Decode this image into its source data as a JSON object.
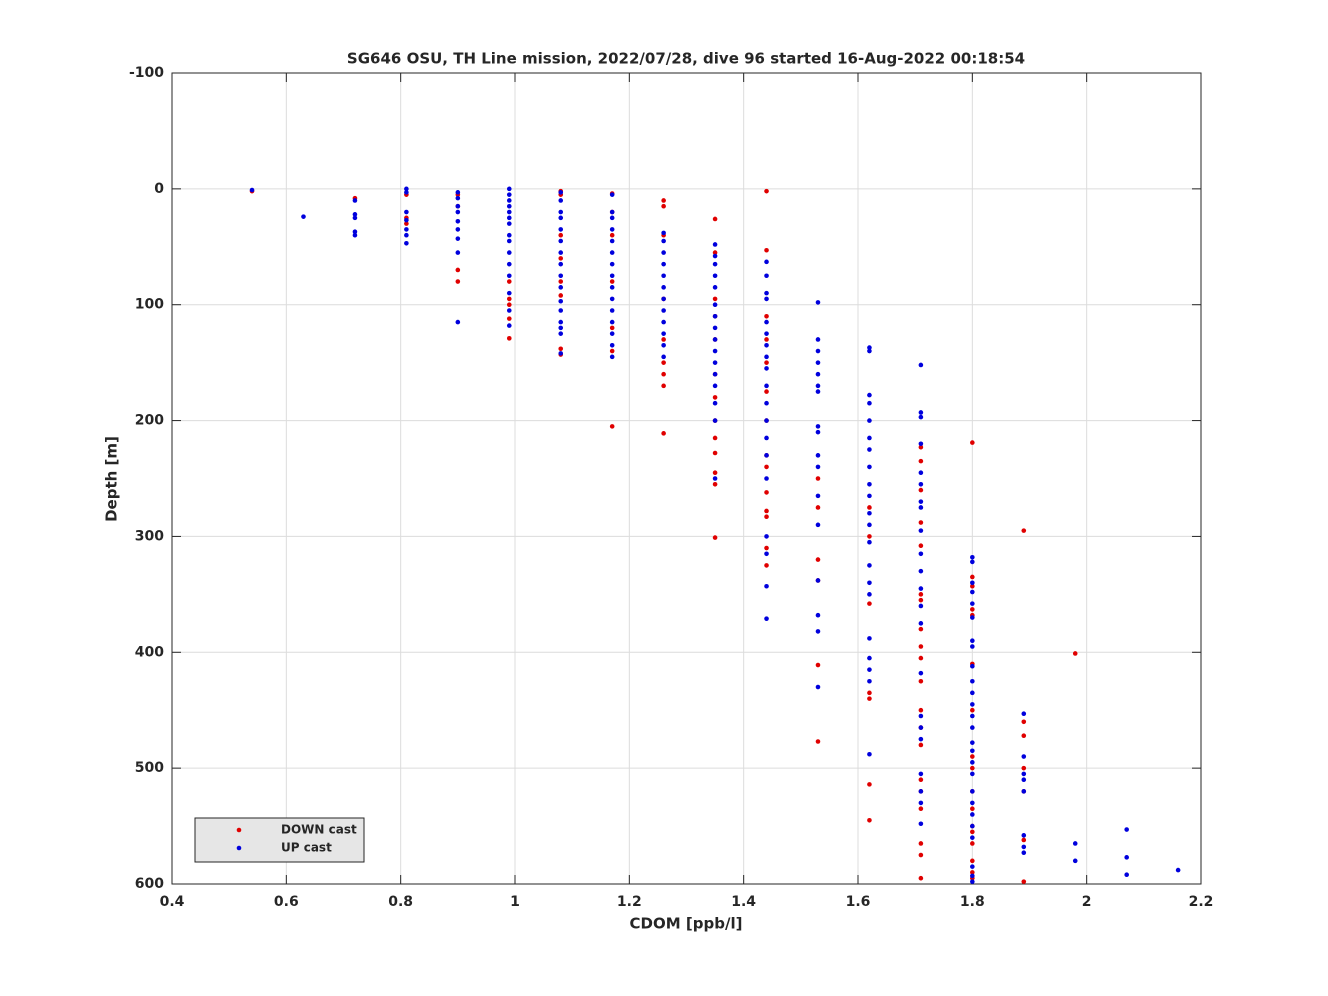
{
  "chart_data": {
    "type": "scatter",
    "title": "SG646 OSU, TH Line mission, 2022/07/28, dive 96 started 16-Aug-2022 00:18:54",
    "x_label": "CDOM [ppb/l]",
    "y_label": "Depth [m]",
    "xlim": [
      0.4,
      2.2
    ],
    "xticks": [
      0.4,
      0.6,
      0.8,
      1,
      1.2,
      1.4,
      1.6,
      1.8,
      2,
      2.2
    ],
    "ylim": [
      -100,
      600
    ],
    "yticks": [
      -100,
      0,
      100,
      200,
      300,
      400,
      500,
      600
    ],
    "y_reversed": true,
    "grid": true,
    "legend": "lower left",
    "series": [
      {
        "name": "DOWN cast",
        "color": "#e00000",
        "x": [
          0.54,
          0.72,
          0.81,
          0.81,
          0.81,
          0.9,
          0.9,
          0.9,
          0.9,
          0.99,
          0.99,
          0.99,
          0.99,
          0.99,
          1.08,
          1.08,
          1.08,
          1.08,
          1.08,
          1.08,
          1.08,
          1.08,
          1.17,
          1.17,
          1.17,
          1.17,
          1.17,
          1.17,
          1.17,
          1.26,
          1.26,
          1.26,
          1.26,
          1.26,
          1.26,
          1.26,
          1.26,
          1.26,
          1.35,
          1.35,
          1.35,
          1.35,
          1.35,
          1.35,
          1.35,
          1.35,
          1.35,
          1.35,
          1.35,
          1.35,
          1.35,
          1.44,
          1.44,
          1.44,
          1.44,
          1.44,
          1.44,
          1.44,
          1.44,
          1.44,
          1.44,
          1.44,
          1.44,
          1.44,
          1.44,
          1.53,
          1.53,
          1.53,
          1.53,
          1.53,
          1.53,
          1.62,
          1.62,
          1.62,
          1.62,
          1.62,
          1.62,
          1.62,
          1.71,
          1.71,
          1.71,
          1.71,
          1.71,
          1.71,
          1.71,
          1.71,
          1.71,
          1.71,
          1.71,
          1.71,
          1.71,
          1.71,
          1.71,
          1.71,
          1.71,
          1.71,
          1.71,
          1.71,
          1.8,
          1.8,
          1.8,
          1.8,
          1.8,
          1.8,
          1.8,
          1.8,
          1.8,
          1.8,
          1.8,
          1.8,
          1.8,
          1.8,
          1.8,
          1.8,
          1.8,
          1.89,
          1.89,
          1.89,
          1.89,
          1.89,
          1.89,
          1.89,
          1.98
        ],
        "y": [
          2,
          8,
          5,
          25,
          30,
          5,
          15,
          70,
          80,
          80,
          95,
          100,
          112,
          129,
          2,
          5,
          40,
          60,
          80,
          92,
          138,
          143,
          4,
          20,
          40,
          80,
          120,
          140,
          205,
          10,
          15,
          40,
          95,
          130,
          150,
          160,
          170,
          211,
          26,
          55,
          95,
          110,
          130,
          160,
          180,
          200,
          215,
          228,
          245,
          255,
          301,
          2,
          53,
          110,
          130,
          150,
          175,
          200,
          230,
          240,
          262,
          278,
          283,
          310,
          325,
          250,
          275,
          320,
          338,
          411,
          477,
          275,
          300,
          358,
          435,
          440,
          514,
          545,
          223,
          235,
          260,
          288,
          308,
          350,
          355,
          380,
          395,
          405,
          425,
          450,
          465,
          480,
          510,
          520,
          535,
          565,
          575,
          595,
          219,
          335,
          343,
          363,
          368,
          410,
          450,
          490,
          500,
          520,
          535,
          550,
          555,
          565,
          580,
          590,
          595,
          295,
          460,
          472,
          500,
          520,
          562,
          598,
          401
        ]
      },
      {
        "name": "UP cast",
        "color": "#0000dd",
        "x": [
          0.54,
          0.63,
          0.72,
          0.72,
          0.72,
          0.72,
          0.72,
          0.81,
          0.81,
          0.81,
          0.81,
          0.81,
          0.81,
          0.81,
          0.9,
          0.9,
          0.9,
          0.9,
          0.9,
          0.9,
          0.9,
          0.9,
          0.9,
          0.99,
          0.99,
          0.99,
          0.99,
          0.99,
          0.99,
          0.99,
          0.99,
          0.99,
          0.99,
          0.99,
          0.99,
          0.99,
          0.99,
          0.99,
          1.08,
          1.08,
          1.08,
          1.08,
          1.08,
          1.08,
          1.08,
          1.08,
          1.08,
          1.08,
          1.08,
          1.08,
          1.08,
          1.08,
          1.08,
          1.08,
          1.17,
          1.17,
          1.17,
          1.17,
          1.17,
          1.17,
          1.17,
          1.17,
          1.17,
          1.17,
          1.17,
          1.17,
          1.17,
          1.17,
          1.17,
          1.26,
          1.26,
          1.26,
          1.26,
          1.26,
          1.26,
          1.26,
          1.26,
          1.26,
          1.26,
          1.26,
          1.26,
          1.35,
          1.35,
          1.35,
          1.35,
          1.35,
          1.35,
          1.35,
          1.35,
          1.35,
          1.35,
          1.35,
          1.35,
          1.35,
          1.35,
          1.35,
          1.35,
          1.44,
          1.44,
          1.44,
          1.44,
          1.44,
          1.44,
          1.44,
          1.44,
          1.44,
          1.44,
          1.44,
          1.44,
          1.44,
          1.44,
          1.44,
          1.44,
          1.44,
          1.44,
          1.44,
          1.53,
          1.53,
          1.53,
          1.53,
          1.53,
          1.53,
          1.53,
          1.53,
          1.53,
          1.53,
          1.53,
          1.53,
          1.53,
          1.53,
          1.53,
          1.53,
          1.53,
          1.62,
          1.62,
          1.62,
          1.62,
          1.62,
          1.62,
          1.62,
          1.62,
          1.62,
          1.62,
          1.62,
          1.62,
          1.62,
          1.62,
          1.62,
          1.62,
          1.62,
          1.62,
          1.62,
          1.62,
          1.62,
          1.71,
          1.71,
          1.71,
          1.71,
          1.71,
          1.71,
          1.71,
          1.71,
          1.71,
          1.71,
          1.71,
          1.71,
          1.71,
          1.71,
          1.71,
          1.71,
          1.71,
          1.71,
          1.71,
          1.71,
          1.71,
          1.71,
          1.8,
          1.8,
          1.8,
          1.8,
          1.8,
          1.8,
          1.8,
          1.8,
          1.8,
          1.8,
          1.8,
          1.8,
          1.8,
          1.8,
          1.8,
          1.8,
          1.8,
          1.8,
          1.8,
          1.8,
          1.8,
          1.8,
          1.8,
          1.8,
          1.8,
          1.8,
          1.89,
          1.89,
          1.89,
          1.89,
          1.89,
          1.89,
          1.89,
          1.89,
          1.98,
          1.98,
          2.07,
          2.07,
          2.07,
          2.16
        ],
        "y": [
          1,
          24,
          10,
          22,
          25,
          37,
          40,
          0,
          3,
          20,
          27,
          35,
          40,
          47,
          3,
          8,
          15,
          20,
          28,
          35,
          43,
          55,
          115,
          0,
          5,
          10,
          15,
          20,
          25,
          30,
          40,
          45,
          55,
          65,
          75,
          90,
          105,
          118,
          3,
          10,
          20,
          25,
          35,
          45,
          55,
          65,
          75,
          85,
          97,
          105,
          115,
          120,
          125,
          142,
          5,
          20,
          25,
          35,
          45,
          55,
          65,
          75,
          85,
          95,
          105,
          115,
          125,
          135,
          145,
          38,
          45,
          55,
          65,
          75,
          85,
          95,
          105,
          115,
          125,
          135,
          145,
          48,
          58,
          65,
          75,
          85,
          100,
          110,
          120,
          130,
          140,
          150,
          160,
          170,
          185,
          200,
          250,
          63,
          75,
          90,
          95,
          115,
          125,
          135,
          145,
          155,
          170,
          185,
          200,
          215,
          230,
          250,
          300,
          315,
          343,
          371,
          98,
          130,
          140,
          150,
          160,
          170,
          175,
          205,
          210,
          230,
          240,
          265,
          290,
          338,
          368,
          382,
          430,
          137,
          140,
          178,
          185,
          200,
          215,
          225,
          240,
          255,
          265,
          280,
          290,
          305,
          325,
          340,
          350,
          388,
          405,
          415,
          425,
          488,
          152,
          193,
          197,
          220,
          245,
          255,
          270,
          275,
          295,
          315,
          330,
          345,
          360,
          375,
          418,
          455,
          465,
          475,
          505,
          520,
          530,
          548,
          318,
          322,
          340,
          348,
          358,
          370,
          390,
          395,
          412,
          425,
          435,
          445,
          455,
          465,
          478,
          485,
          495,
          505,
          520,
          530,
          540,
          550,
          560,
          585,
          593,
          598,
          453,
          490,
          505,
          510,
          520,
          558,
          568,
          573,
          565,
          580,
          553,
          577,
          592,
          588
        ]
      }
    ]
  }
}
